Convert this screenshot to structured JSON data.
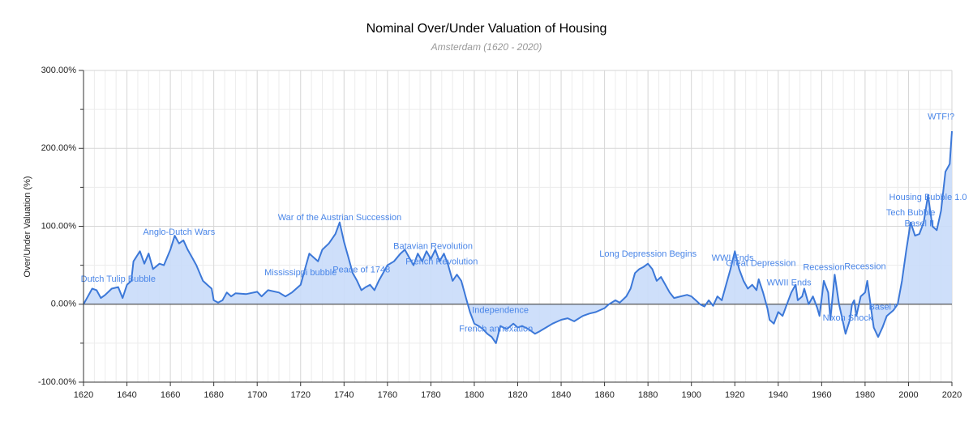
{
  "chart_data": {
    "type": "area",
    "title": "Nominal Over/Under Valuation of Housing",
    "subtitle": "Amsterdam (1620 - 2020)",
    "y_label": "Over/Under Valuation (%)",
    "xlim": [
      1620,
      2020
    ],
    "ylim": [
      -100,
      300
    ],
    "xticks": [
      1620,
      1640,
      1660,
      1680,
      1700,
      1720,
      1740,
      1760,
      1780,
      1800,
      1820,
      1840,
      1860,
      1880,
      1900,
      1920,
      1940,
      1960,
      1980,
      2000,
      2020
    ],
    "minor_xticks": [
      1625,
      1630,
      1635,
      1645,
      1650,
      1655,
      1665,
      1670,
      1675,
      1685,
      1690,
      1695,
      1705,
      1710,
      1715,
      1725,
      1730,
      1735,
      1745,
      1750,
      1755,
      1765,
      1770,
      1775,
      1785,
      1790,
      1795,
      1805,
      1810,
      1815,
      1825,
      1830,
      1835,
      1845,
      1850,
      1855,
      1865,
      1870,
      1875,
      1885,
      1890,
      1895,
      1905,
      1910,
      1915,
      1925,
      1930,
      1935,
      1945,
      1950,
      1955,
      1965,
      1970,
      1975,
      1985,
      1990,
      1995,
      2005,
      2010,
      2015
    ],
    "yticks": [
      {
        "value": -100,
        "label": "-100.00%"
      },
      {
        "value": 0,
        "label": "0.00%"
      },
      {
        "value": 100,
        "label": "100.00%"
      },
      {
        "value": 200,
        "label": "200.00%"
      },
      {
        "value": 300,
        "label": "300.00%"
      }
    ],
    "minor_yticks": [
      -50,
      50,
      150,
      250
    ],
    "grid": true,
    "series": [
      {
        "name": "Over/Under Valuation",
        "color": "#3c78d8",
        "fill": "#c9dcfa",
        "x": [
          1620,
          1622,
          1624,
          1626,
          1628,
          1630,
          1633,
          1636,
          1638,
          1640,
          1642,
          1643,
          1646,
          1648,
          1650,
          1652,
          1655,
          1657,
          1660,
          1662,
          1664,
          1666,
          1668,
          1670,
          1672,
          1675,
          1677,
          1679,
          1680,
          1682,
          1684,
          1686,
          1688,
          1690,
          1695,
          1700,
          1702,
          1705,
          1710,
          1713,
          1716,
          1720,
          1722,
          1724,
          1726,
          1728,
          1730,
          1733,
          1736,
          1738,
          1740,
          1742,
          1744,
          1746,
          1748,
          1750,
          1752,
          1754,
          1756,
          1758,
          1760,
          1763,
          1766,
          1768,
          1770,
          1772,
          1774,
          1776,
          1778,
          1780,
          1782,
          1784,
          1786,
          1788,
          1790,
          1792,
          1794,
          1796,
          1798,
          1800,
          1802,
          1804,
          1806,
          1808,
          1810,
          1812,
          1815,
          1818,
          1820,
          1822,
          1825,
          1828,
          1830,
          1833,
          1836,
          1840,
          1843,
          1846,
          1850,
          1853,
          1856,
          1860,
          1862,
          1865,
          1867,
          1870,
          1872,
          1874,
          1876,
          1878,
          1880,
          1882,
          1884,
          1886,
          1888,
          1890,
          1892,
          1895,
          1898,
          1900,
          1902,
          1904,
          1906,
          1908,
          1910,
          1912,
          1914,
          1916,
          1918,
          1920,
          1922,
          1924,
          1926,
          1928,
          1930,
          1931,
          1933,
          1935,
          1936,
          1938,
          1940,
          1942,
          1944,
          1946,
          1948,
          1949,
          1951,
          1952,
          1954,
          1956,
          1958,
          1959,
          1961,
          1963,
          1964,
          1966,
          1968,
          1970,
          1971,
          1973,
          1974,
          1975,
          1976,
          1978,
          1980,
          1981,
          1983,
          1984,
          1986,
          1988,
          1990,
          1993,
          1995,
          1997,
          1999,
          2001,
          2003,
          2005,
          2007,
          2009,
          2011,
          2013,
          2015,
          2017,
          2019,
          2020
        ],
        "values": [
          0,
          10,
          20,
          18,
          8,
          12,
          20,
          22,
          8,
          25,
          30,
          55,
          68,
          52,
          65,
          45,
          52,
          50,
          70,
          88,
          78,
          82,
          70,
          60,
          50,
          30,
          25,
          20,
          5,
          2,
          5,
          15,
          10,
          14,
          13,
          16,
          10,
          18,
          15,
          10,
          15,
          25,
          45,
          65,
          60,
          55,
          70,
          78,
          90,
          105,
          80,
          60,
          40,
          30,
          18,
          22,
          25,
          18,
          30,
          40,
          50,
          55,
          65,
          70,
          60,
          50,
          65,
          55,
          68,
          58,
          70,
          55,
          65,
          50,
          30,
          38,
          30,
          10,
          -10,
          -25,
          -28,
          -32,
          -38,
          -42,
          -50,
          -28,
          -32,
          -25,
          -30,
          -28,
          -32,
          -38,
          -35,
          -30,
          -25,
          -20,
          -18,
          -22,
          -15,
          -12,
          -10,
          -5,
          0,
          5,
          2,
          10,
          20,
          40,
          45,
          48,
          52,
          45,
          30,
          35,
          25,
          15,
          8,
          10,
          12,
          10,
          5,
          0,
          -3,
          5,
          -2,
          10,
          5,
          25,
          45,
          68,
          45,
          30,
          20,
          25,
          18,
          32,
          15,
          -5,
          -20,
          -25,
          -10,
          -15,
          0,
          15,
          25,
          5,
          10,
          20,
          0,
          10,
          -5,
          -15,
          30,
          15,
          -20,
          38,
          0,
          -25,
          -38,
          -20,
          0,
          5,
          -15,
          10,
          15,
          30,
          -10,
          -30,
          -42,
          -30,
          -15,
          -8,
          0,
          30,
          70,
          105,
          88,
          90,
          105,
          140,
          100,
          95,
          120,
          170,
          180,
          222
        ]
      }
    ],
    "annotations": [
      {
        "text": "Dutch Tulip Bubble",
        "x": 1636,
        "y": 32
      },
      {
        "text": "Anglo-Dutch Wars",
        "x": 1664,
        "y": 92
      },
      {
        "text": "War of the Austrian Succession",
        "x": 1738,
        "y": 111
      },
      {
        "text": "Mississippi bubble",
        "x": 1720,
        "y": 40
      },
      {
        "text": "Peace of 1748",
        "x": 1748,
        "y": 44
      },
      {
        "text": "Batavian Revolution",
        "x": 1781,
        "y": 74
      },
      {
        "text": "French Revolution",
        "x": 1785,
        "y": 54
      },
      {
        "text": "Independence",
        "x": 1812,
        "y": -8
      },
      {
        "text": "French annexation",
        "x": 1810,
        "y": -32
      },
      {
        "text": "Long Depression Begins",
        "x": 1880,
        "y": 64
      },
      {
        "text": "WWI Ends",
        "x": 1919,
        "y": 59
      },
      {
        "text": "Great Depression",
        "x": 1932,
        "y": 52
      },
      {
        "text": "WWII Ends",
        "x": 1945,
        "y": 27
      },
      {
        "text": "Recession",
        "x": 1961,
        "y": 47
      },
      {
        "text": "Recession",
        "x": 1980,
        "y": 48
      },
      {
        "text": "Nixon Shock",
        "x": 1972,
        "y": -18
      },
      {
        "text": "Basel I",
        "x": 1988,
        "y": -4
      },
      {
        "text": "Housing Bubble 1.0",
        "x": 2009,
        "y": 137
      },
      {
        "text": "Tech Bubble",
        "x": 2001,
        "y": 117
      },
      {
        "text": "Basel II",
        "x": 2005,
        "y": 103
      },
      {
        "text": "WTF!?",
        "x": 2015,
        "y": 240
      }
    ]
  }
}
